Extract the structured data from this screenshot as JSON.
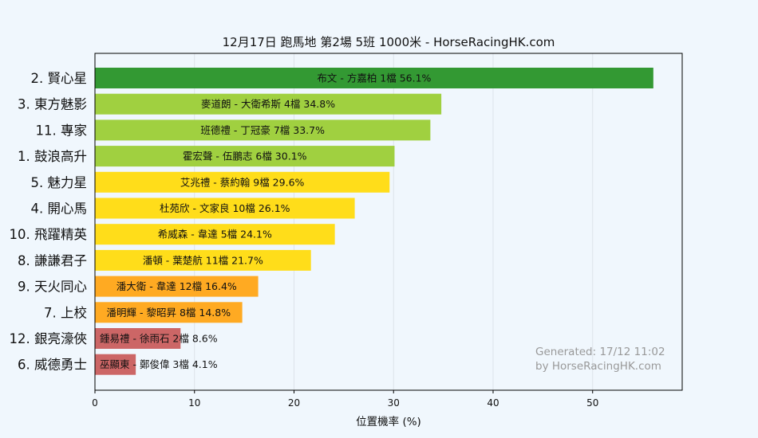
{
  "chart_data": {
    "type": "bar",
    "orientation": "horizontal",
    "title": "12月17日  跑馬地  第2場  5班  1000米 - HorseRacingHK.com",
    "xlabel": "位置機率 (%)",
    "ylabel": "",
    "xlim": [
      0,
      59
    ],
    "xticks": [
      0,
      10,
      20,
      30,
      40,
      50
    ],
    "grid": true,
    "categories": [
      "2. 賢心星",
      "3. 東方魅影",
      "11. 專家",
      "1. 鼓浪高升",
      "5. 魅力星",
      "4. 開心馬",
      "10. 飛躍精英",
      "8. 謙謙君子",
      "9. 天火同心",
      "7. 上校",
      "12. 銀亮濠俠",
      "6. 威德勇士"
    ],
    "values": [
      56.1,
      34.8,
      33.7,
      30.1,
      29.6,
      26.1,
      24.1,
      21.7,
      16.4,
      14.8,
      8.6,
      4.1
    ],
    "bar_labels": [
      "布文 - 方嘉柏 1檔  56.1%",
      "麥道朗 - 大衛希斯 4檔  34.8%",
      "班德禮 - 丁冠豪 7檔  33.7%",
      "霍宏聲 - 伍鵬志 6檔  30.1%",
      "艾兆禮 - 蔡約翰 9檔  29.6%",
      "杜苑欣 - 文家良 10檔  26.1%",
      "希威森 - 韋達 5檔  24.1%",
      "潘頓 - 葉楚航 11檔  21.7%",
      "潘大衛 - 韋達 12檔  16.4%",
      "潘明輝 - 黎昭昇 8檔  14.8%",
      "鍾易禮 - 徐雨石 2檔  8.6%",
      "巫顯東 - 鄭俊偉 3檔  4.1%"
    ],
    "colors": [
      "#339933",
      "#a0d040",
      "#a0d040",
      "#a0d040",
      "#ffdd1a",
      "#ffdd1a",
      "#ffdd1a",
      "#ffdd1a",
      "#ffaa22",
      "#ffaa22",
      "#cc6666",
      "#cc6666"
    ]
  },
  "watermark": {
    "line1": "Generated: 17/12 11:02",
    "line2": "by HorseRacingHK.com"
  }
}
